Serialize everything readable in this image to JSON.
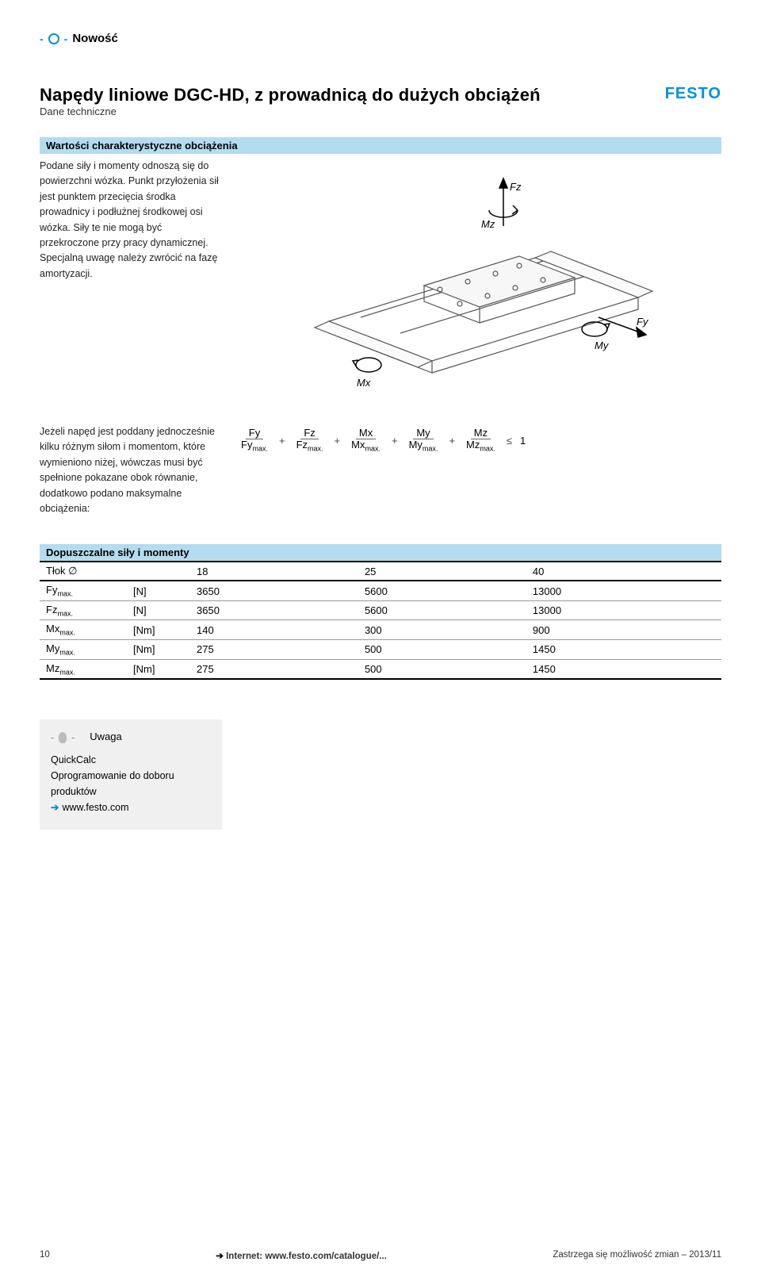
{
  "new_label": "Nowość",
  "title": "Napędy liniowe DGC-HD, z prowadnicą do dużych obciążeń",
  "subtitle": "Dane techniczne",
  "logo": "FESTO",
  "section_header": "Wartości charakterystyczne obciążenia",
  "desc_text": "Podane siły i momenty odnoszą się do powierzchni wózka. Punkt przyłożenia sił jest punktem przecięcia środka prowadnicy i podłużnej środkowej osi wózka. Siły te nie mogą być przekroczone przy pracy dynamicznej. Specjalną uwagę należy zwrócić na fazę amortyzacji.",
  "formula_desc": "Jeżeli napęd jest poddany jednocześnie kilku różnym siłom i momentom, które wymieniono niżej, wówczas musi być spełnione pokazane obok równanie, dodatkowo podano maksymalne obciążenia:",
  "formula": {
    "terms": [
      {
        "num": "Fy",
        "den": "Fy",
        "densub": "max."
      },
      {
        "num": "Fz",
        "den": "Fz",
        "densub": "max."
      },
      {
        "num": "Mx",
        "den": "Mx",
        "densub": "max."
      },
      {
        "num": "My",
        "den": "My",
        "densub": "max."
      },
      {
        "num": "Mz",
        "den": "Mz",
        "densub": "max."
      }
    ],
    "rel": "≤",
    "rhs": "1"
  },
  "table": {
    "title": "Dopuszczalne siły i momenty",
    "col_header": "Tłok ∅",
    "sizes": [
      "18",
      "25",
      "40"
    ],
    "rows": [
      {
        "param": "Fy",
        "sub": "max.",
        "unit": "[N]",
        "v": [
          "3650",
          "5600",
          "13000"
        ]
      },
      {
        "param": "Fz",
        "sub": "max.",
        "unit": "[N]",
        "v": [
          "3650",
          "5600",
          "13000"
        ]
      },
      {
        "param": "Mx",
        "sub": "max.",
        "unit": "[Nm]",
        "v": [
          "140",
          "300",
          "900"
        ]
      },
      {
        "param": "My",
        "sub": "max.",
        "unit": "[Nm]",
        "v": [
          "275",
          "500",
          "1450"
        ]
      },
      {
        "param": "Mz",
        "sub": "max.",
        "unit": "[Nm]",
        "v": [
          "275",
          "500",
          "1450"
        ]
      }
    ]
  },
  "note": {
    "header": "Uwaga",
    "l1": "QuickCalc",
    "l2": "Oprogramowanie do doboru produktów",
    "link": "www.festo.com"
  },
  "footer": {
    "page": "10",
    "center_prefix": "Internet: ",
    "center_link": "www.festo.com/catalogue/...",
    "right": "Zastrzega się możliwość zmian – 2013/11"
  },
  "diagram_labels": {
    "fz": "Fz",
    "fy": "Fy",
    "mx": "Mx",
    "my": "My",
    "mz": "Mz"
  },
  "colors": {
    "accent": "#0091dc",
    "bar": "#b3dcf0",
    "gray_box": "#f0f0f0"
  }
}
